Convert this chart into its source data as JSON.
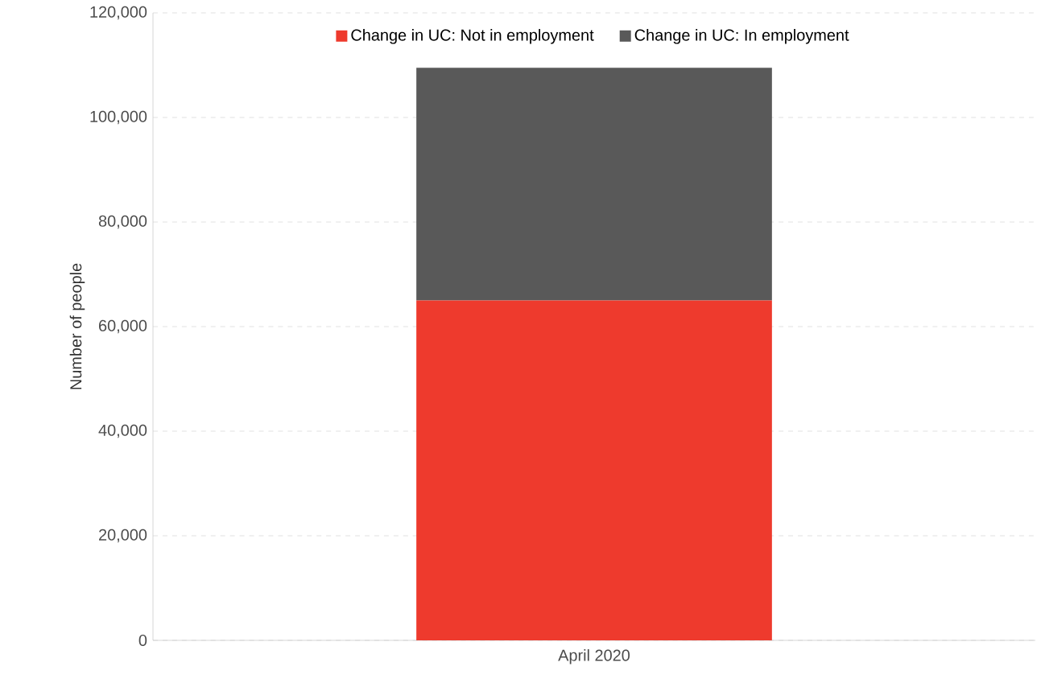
{
  "chart_data": {
    "type": "bar",
    "stacked": true,
    "ylabel": "Number of people",
    "categories": [
      "April 2020"
    ],
    "series": [
      {
        "name": "Change in UC: Not in employment",
        "color": "#ee3a2d",
        "values": [
          65000
        ]
      },
      {
        "name": "Change in UC: In employment",
        "color": "#595959",
        "values": [
          44500
        ]
      }
    ],
    "ylim": [
      0,
      120000
    ],
    "yticks": [
      {
        "value": 0,
        "label": "0"
      },
      {
        "value": 20000,
        "label": "20,000"
      },
      {
        "value": 40000,
        "label": "40,000"
      },
      {
        "value": 60000,
        "label": "60,000"
      },
      {
        "value": 80000,
        "label": "80,000"
      },
      {
        "value": 100000,
        "label": "100,000"
      },
      {
        "value": 120000,
        "label": "120,000"
      }
    ],
    "grid": "y",
    "legend": "top"
  }
}
